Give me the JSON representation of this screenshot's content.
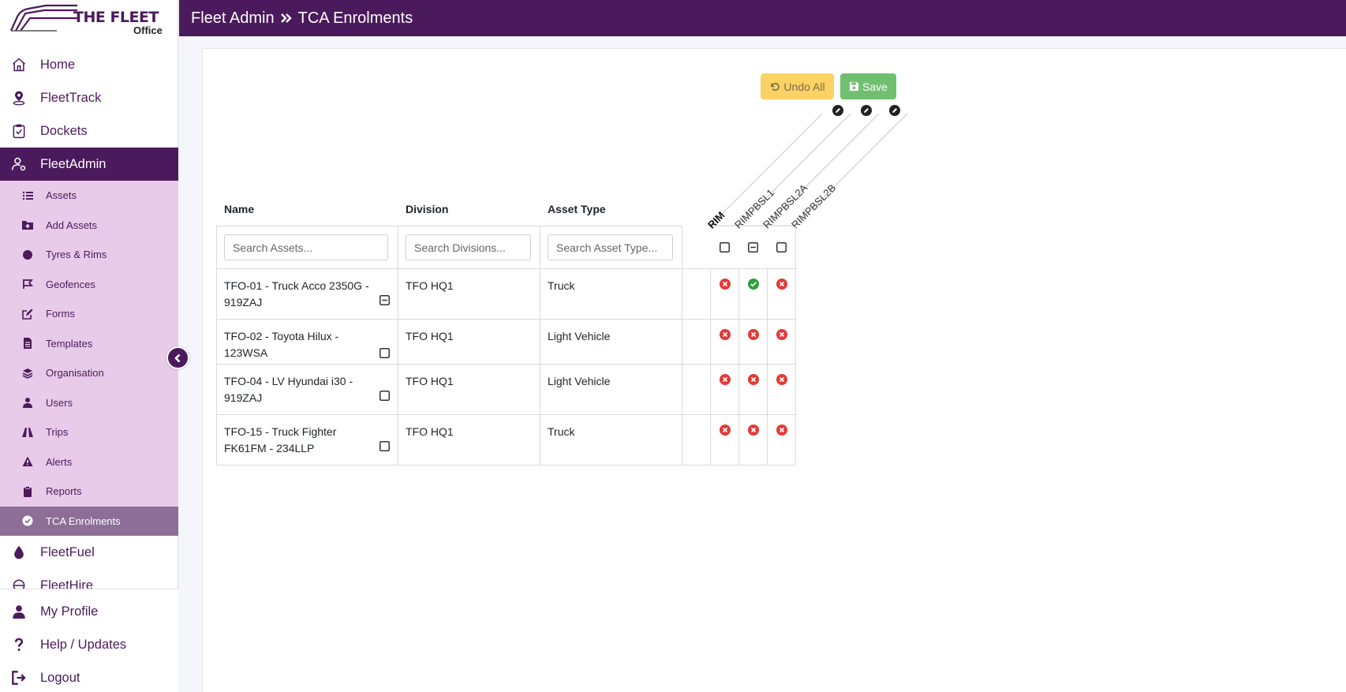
{
  "app": {
    "logo_text": "THE FLEET",
    "logo_sub": "Office"
  },
  "header": {
    "section": "Fleet Admin",
    "page": "TCA Enrolments"
  },
  "nav": {
    "main_top": [
      {
        "label": "Home",
        "icon": "home-icon"
      },
      {
        "label": "FleetTrack",
        "icon": "location-pin-icon"
      },
      {
        "label": "Dockets",
        "icon": "clipboard-check-icon"
      },
      {
        "label": "FleetAdmin",
        "icon": "user-gear-icon",
        "active": true
      }
    ],
    "sub": [
      {
        "label": "Assets",
        "icon": "list-icon"
      },
      {
        "label": "Add Assets",
        "icon": "folder-plus-icon"
      },
      {
        "label": "Tyres & Rims",
        "icon": "circle-icon"
      },
      {
        "label": "Geofences",
        "icon": "flag-icon"
      },
      {
        "label": "Forms",
        "icon": "edit-icon"
      },
      {
        "label": "Templates",
        "icon": "file-icon"
      },
      {
        "label": "Organisation",
        "icon": "layers-icon"
      },
      {
        "label": "Users",
        "icon": "user-icon"
      },
      {
        "label": "Trips",
        "icon": "road-icon"
      },
      {
        "label": "Alerts",
        "icon": "warning-icon"
      },
      {
        "label": "Reports",
        "icon": "clipboard-icon"
      },
      {
        "label": "TCA Enrolments",
        "icon": "check-circle-icon",
        "active": true
      }
    ],
    "main_after": [
      {
        "label": "FleetFuel",
        "icon": "droplet-icon"
      },
      {
        "label": "FleetHire",
        "icon": "hire-icon"
      }
    ],
    "bottom": [
      {
        "label": "My Profile",
        "icon": "user-icon"
      },
      {
        "label": "Help / Updates",
        "icon": "question-icon"
      },
      {
        "label": "Logout",
        "icon": "logout-icon"
      }
    ]
  },
  "toolbar": {
    "undo_label": "Undo All",
    "save_label": "Save"
  },
  "table": {
    "headers": {
      "name": "Name",
      "division": "Division",
      "asset_type": "Asset Type"
    },
    "rotated_headers": {
      "group": "RIM",
      "columns": [
        "RIMPBSL1",
        "RIMPBSL2A",
        "RIMPBSL2B"
      ]
    },
    "search": {
      "name_placeholder": "Search Assets...",
      "division_placeholder": "Search Divisions...",
      "type_placeholder": "Search Asset Type..."
    },
    "header_checks": [
      "unchecked",
      "partial",
      "unchecked"
    ],
    "rows": [
      {
        "name": "TFO-01 - Truck Acco 2350G - 919ZAJ",
        "row_check": "partial",
        "division": "TFO HQ1",
        "type": "Truck",
        "status": [
          "no",
          "yes",
          "no"
        ]
      },
      {
        "name": "TFO-02 - Toyota Hilux - 123WSA",
        "row_check": "unchecked",
        "division": "TFO HQ1",
        "type": "Light Vehicle",
        "status": [
          "no",
          "no",
          "no"
        ]
      },
      {
        "name": "TFO-04 - LV Hyundai i30 - 919ZAJ",
        "row_check": "unchecked",
        "division": "TFO HQ1",
        "type": "Light Vehicle",
        "status": [
          "no",
          "no",
          "no"
        ]
      },
      {
        "name": "TFO-15 - Truck Fighter FK61FM - 234LLP",
        "row_check": "unchecked",
        "division": "TFO HQ1",
        "type": "Truck",
        "status": [
          "no",
          "no",
          "no"
        ]
      }
    ]
  },
  "colors": {
    "brand": "#4b1a5c",
    "submenu_bg": "#e7cbe9",
    "active_sub": "#8c6e97",
    "warning": "#fbd263",
    "success": "#6fbf6f",
    "error_icon": "#e53935",
    "ok_icon": "#2e9e3e"
  }
}
